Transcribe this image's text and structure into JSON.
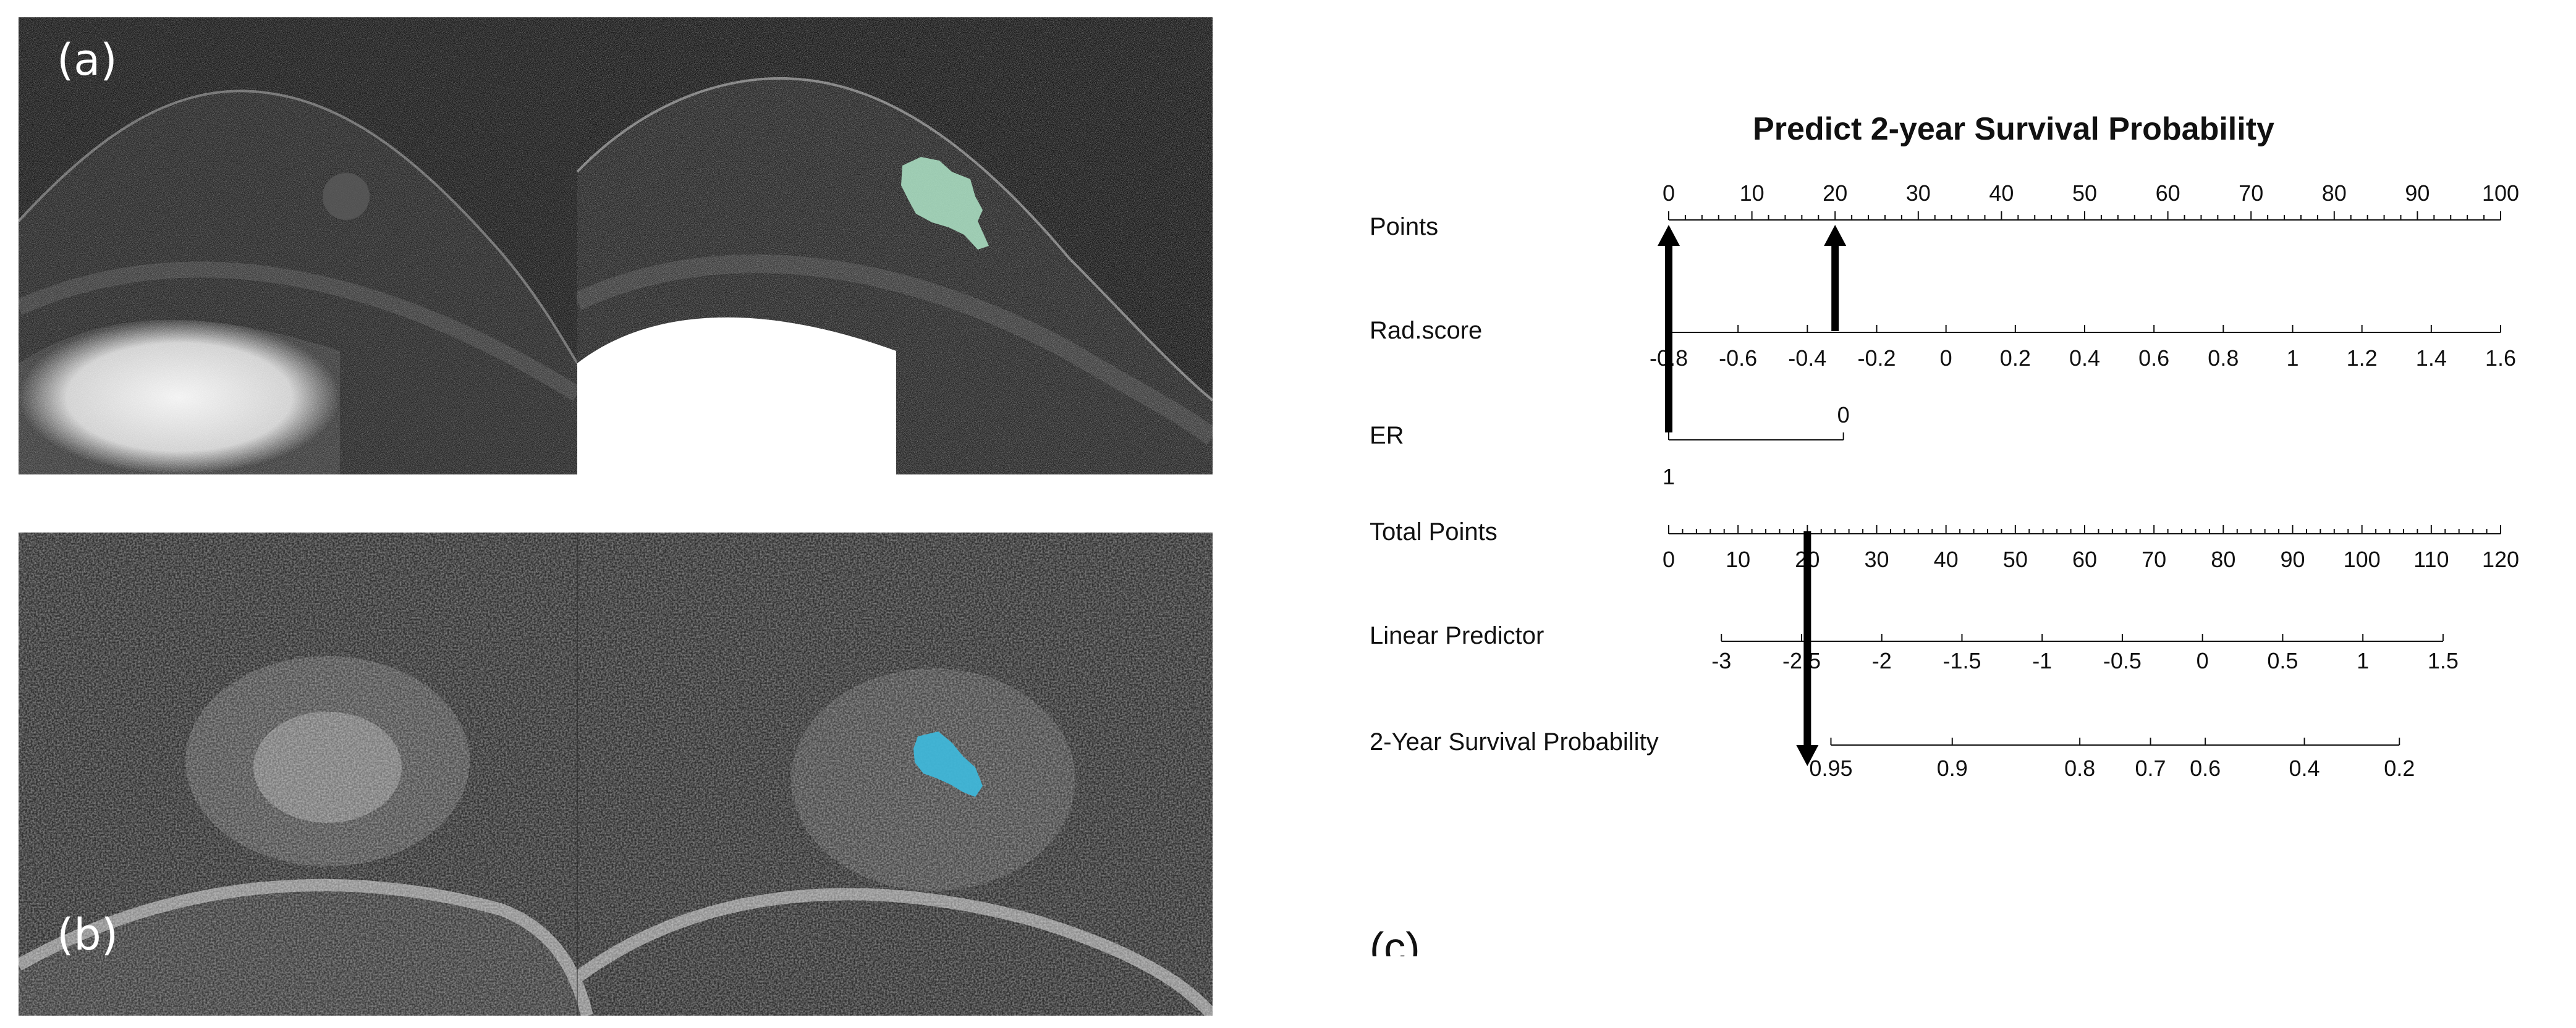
{
  "panels": {
    "a": {
      "label": "(a)"
    },
    "b": {
      "label": "(b)"
    },
    "c": {
      "label": "(c)"
    }
  },
  "colors": {
    "roi_a": "#a8dcc0",
    "roi_b": "#3fb6d8",
    "arrow": "#000000"
  },
  "chart_data": {
    "type": "nomogram",
    "title": "Predict 2-year Survival Probability",
    "rows": [
      {
        "label": "Points",
        "ticks": [
          "0",
          "10",
          "20",
          "30",
          "40",
          "50",
          "60",
          "70",
          "80",
          "90",
          "100"
        ],
        "values": [
          0,
          10,
          20,
          30,
          40,
          50,
          60,
          70,
          80,
          90,
          100
        ],
        "label_side": "above",
        "range": [
          0,
          100
        ]
      },
      {
        "label": "Rad.score",
        "ticks": [
          "-0.8",
          "-0.6",
          "-0.4",
          "-0.2",
          "0",
          "0.2",
          "0.4",
          "0.6",
          "0.8",
          "1",
          "1.2",
          "1.4",
          "1.6"
        ],
        "values": [
          -0.8,
          -0.6,
          -0.4,
          -0.2,
          0,
          0.2,
          0.4,
          0.6,
          0.8,
          1,
          1.2,
          1.4,
          1.6
        ],
        "points_at_min": 0,
        "points_at_max": 100
      },
      {
        "label": "ER",
        "ticks": [
          "0",
          "1"
        ],
        "categories": [
          {
            "label": "1",
            "points": 0
          },
          {
            "label": "0",
            "points": 21
          }
        ]
      },
      {
        "label": "Total Points",
        "ticks": [
          "0",
          "10",
          "20",
          "30",
          "40",
          "50",
          "60",
          "70",
          "80",
          "90",
          "100",
          "110",
          "120"
        ],
        "values": [
          0,
          10,
          20,
          30,
          40,
          50,
          60,
          70,
          80,
          90,
          100,
          110,
          120
        ],
        "range": [
          0,
          120
        ]
      },
      {
        "label": "Linear Predictor",
        "ticks": [
          "-3",
          "-2.5",
          "-2",
          "-1.5",
          "-1",
          "-0.5",
          "0",
          "0.5",
          "1",
          "1.5"
        ],
        "values": [
          -3,
          -2.5,
          -2,
          -1.5,
          -1,
          -0.5,
          0,
          0.5,
          1,
          1.5
        ]
      },
      {
        "label": "2-Year Survival Probability",
        "ticks": [
          "0.95",
          "0.9",
          "0.8",
          "0.7",
          "0.6",
          "0.4",
          "0.2"
        ],
        "values": [
          0.95,
          0.9,
          0.8,
          0.7,
          0.6,
          0.4,
          0.2
        ]
      }
    ],
    "annotations": [
      {
        "type": "arrow",
        "from": "ER",
        "to": "Points",
        "points": 0
      },
      {
        "type": "arrow",
        "from": "Rad.score",
        "to": "Points",
        "points": 20
      },
      {
        "type": "arrow",
        "from": "Total Points",
        "to": "2-Year Survival Probability",
        "total_points": 20
      }
    ]
  }
}
